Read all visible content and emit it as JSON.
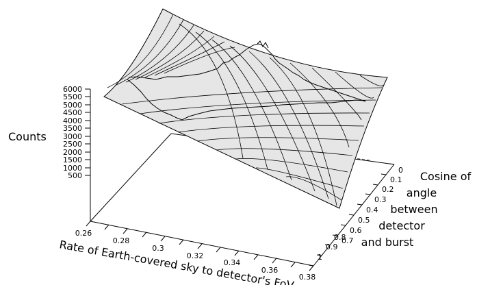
{
  "chart_data": {
    "type": "surface3d",
    "zlabel": "Counts",
    "xlabel": "Rate of Earth-covered sky to detector's FoV",
    "ylabel_lines": [
      "Cosine of",
      "angle",
      "between",
      "detector",
      "and burst"
    ],
    "x_ticks": [
      "0.26",
      "0.28",
      "0.3",
      "0.32",
      "0.34",
      "0.36",
      "0.38"
    ],
    "y_ticks": [
      "0",
      "0.1",
      "0.2",
      "0.3",
      "0.4",
      "0.5",
      "0.6",
      "0.7",
      "0.8",
      "0.9",
      "1"
    ],
    "z_ticks": [
      "500",
      "1000",
      "1500",
      "2000",
      "2500",
      "3000",
      "3500",
      "4000",
      "4500",
      "5000",
      "5500",
      "6000"
    ],
    "xlim": [
      0.26,
      0.38
    ],
    "ylim": [
      0,
      1
    ],
    "zlim": [
      0,
      6000
    ],
    "surface_fill": "#e6e6e6",
    "line_color": "#000000"
  }
}
